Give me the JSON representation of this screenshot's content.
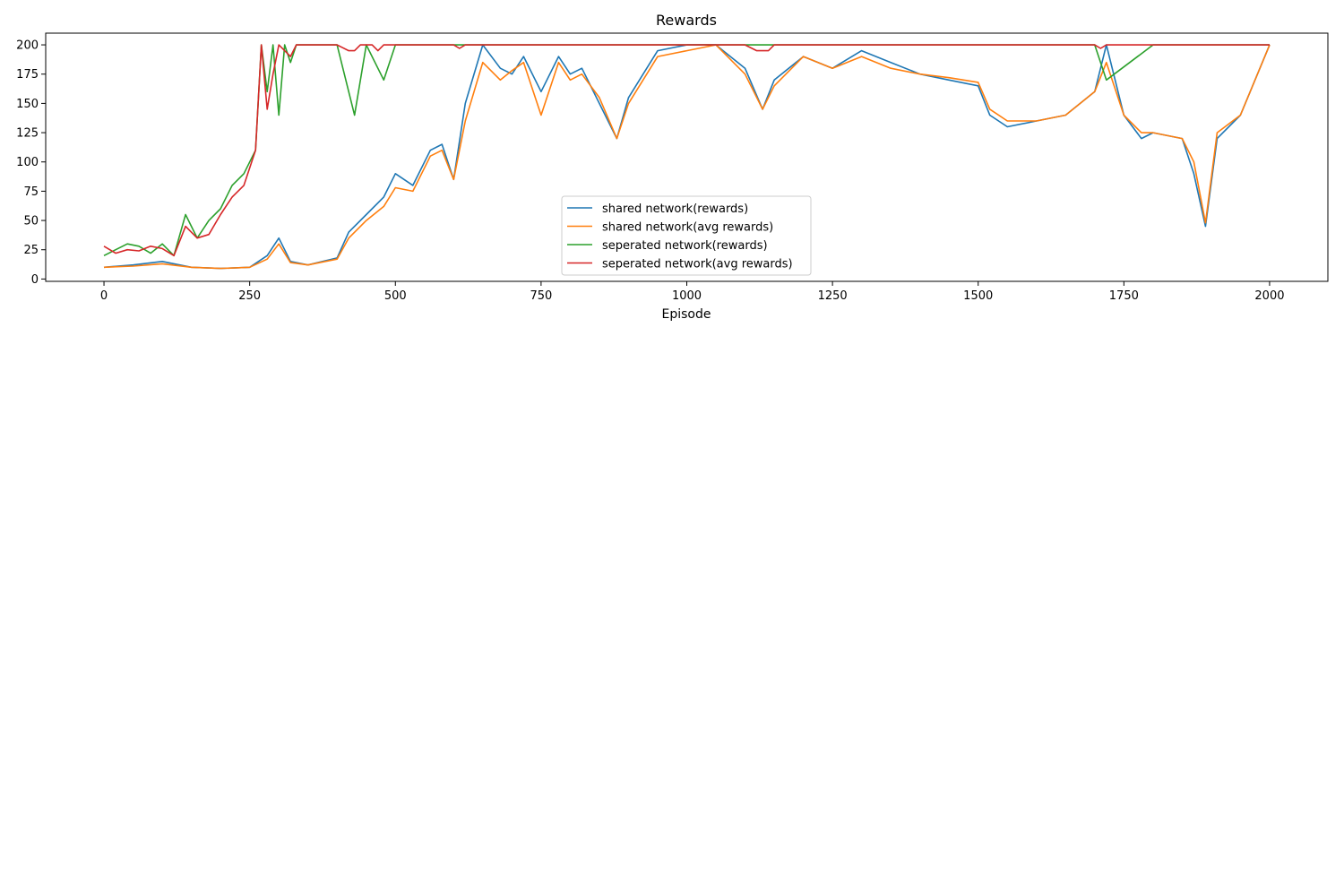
{
  "chart_data": {
    "type": "line",
    "title": "Rewards",
    "xlabel": "Episode",
    "ylabel": "",
    "xlim": [
      -100,
      2100
    ],
    "ylim": [
      -2,
      210
    ],
    "xticks": [
      0,
      250,
      500,
      750,
      1000,
      1250,
      1500,
      1750,
      2000
    ],
    "yticks": [
      0,
      25,
      50,
      75,
      100,
      125,
      150,
      175,
      200
    ],
    "grid": false,
    "legend_position": "center",
    "series": [
      {
        "name": "shared network(rewards)",
        "color": "#1f77b4",
        "x": [
          0,
          50,
          100,
          150,
          200,
          250,
          280,
          300,
          320,
          350,
          400,
          420,
          450,
          480,
          500,
          530,
          560,
          580,
          600,
          620,
          650,
          680,
          700,
          720,
          750,
          780,
          800,
          820,
          850,
          880,
          900,
          950,
          1000,
          1050,
          1100,
          1130,
          1150,
          1200,
          1250,
          1300,
          1350,
          1400,
          1450,
          1500,
          1520,
          1550,
          1600,
          1650,
          1700,
          1720,
          1750,
          1780,
          1800,
          1850,
          1870,
          1890,
          1910,
          1950,
          2000
        ],
        "y": [
          10,
          12,
          15,
          10,
          9,
          10,
          20,
          35,
          15,
          12,
          18,
          40,
          55,
          70,
          90,
          80,
          110,
          115,
          85,
          150,
          200,
          180,
          175,
          190,
          160,
          190,
          175,
          180,
          150,
          120,
          155,
          195,
          200,
          200,
          180,
          145,
          170,
          190,
          180,
          195,
          185,
          175,
          170,
          165,
          140,
          130,
          135,
          140,
          160,
          200,
          140,
          120,
          125,
          120,
          90,
          45,
          120,
          140,
          200
        ]
      },
      {
        "name": "shared network(avg rewards)",
        "color": "#ff7f0e",
        "x": [
          0,
          50,
          100,
          150,
          200,
          250,
          280,
          300,
          320,
          350,
          400,
          420,
          450,
          480,
          500,
          530,
          560,
          580,
          600,
          620,
          650,
          680,
          700,
          720,
          750,
          780,
          800,
          820,
          850,
          880,
          900,
          950,
          1000,
          1050,
          1100,
          1130,
          1150,
          1200,
          1250,
          1300,
          1350,
          1400,
          1450,
          1500,
          1520,
          1550,
          1600,
          1650,
          1700,
          1720,
          1750,
          1780,
          1800,
          1850,
          1870,
          1890,
          1910,
          1950,
          2000
        ],
        "y": [
          10,
          11,
          13,
          10,
          9,
          10,
          17,
          30,
          14,
          12,
          17,
          35,
          50,
          62,
          78,
          75,
          105,
          110,
          85,
          135,
          185,
          170,
          178,
          185,
          140,
          185,
          170,
          175,
          155,
          120,
          150,
          190,
          195,
          200,
          175,
          145,
          165,
          190,
          180,
          190,
          180,
          175,
          172,
          168,
          145,
          135,
          135,
          140,
          160,
          185,
          140,
          125,
          125,
          120,
          100,
          48,
          125,
          140,
          200
        ]
      },
      {
        "name": "seperated network(rewards)",
        "color": "#2ca02c",
        "x": [
          0,
          20,
          40,
          60,
          80,
          100,
          120,
          140,
          160,
          180,
          200,
          220,
          240,
          260,
          270,
          280,
          290,
          300,
          310,
          320,
          330,
          350,
          400,
          430,
          450,
          480,
          500,
          600,
          700,
          800,
          900,
          1000,
          1100,
          1200,
          1300,
          1400,
          1500,
          1600,
          1700,
          1720,
          1800,
          1900,
          2000
        ],
        "y": [
          20,
          25,
          30,
          28,
          22,
          30,
          20,
          55,
          35,
          50,
          60,
          80,
          90,
          110,
          200,
          160,
          200,
          140,
          200,
          185,
          200,
          200,
          200,
          140,
          200,
          170,
          200,
          200,
          200,
          200,
          200,
          200,
          200,
          200,
          200,
          200,
          200,
          200,
          200,
          170,
          200,
          200,
          200
        ]
      },
      {
        "name": "seperated network(avg rewards)",
        "color": "#d62728",
        "x": [
          0,
          20,
          40,
          60,
          80,
          100,
          120,
          140,
          160,
          180,
          200,
          220,
          240,
          260,
          270,
          280,
          290,
          300,
          310,
          320,
          330,
          340,
          400,
          420,
          430,
          440,
          460,
          470,
          480,
          500,
          600,
          610,
          620,
          700,
          800,
          900,
          1000,
          1100,
          1120,
          1140,
          1150,
          1200,
          1300,
          1400,
          1500,
          1600,
          1700,
          1710,
          1720,
          1800,
          1900,
          2000
        ],
        "y": [
          28,
          22,
          25,
          24,
          28,
          26,
          20,
          45,
          35,
          38,
          55,
          70,
          80,
          110,
          200,
          145,
          175,
          200,
          195,
          190,
          200,
          200,
          200,
          195,
          195,
          200,
          200,
          195,
          200,
          200,
          200,
          197,
          200,
          200,
          200,
          200,
          200,
          200,
          195,
          195,
          200,
          200,
          200,
          200,
          200,
          200,
          200,
          197,
          200,
          200,
          200,
          200
        ]
      }
    ]
  }
}
